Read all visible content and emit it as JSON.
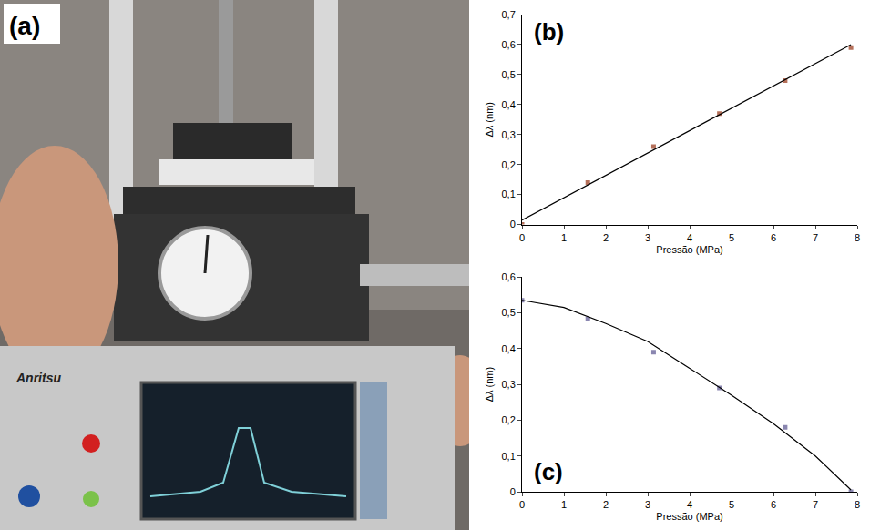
{
  "photo": {
    "label": "(a)",
    "texts": [
      "Anritsu"
    ]
  },
  "chart_data": [
    {
      "type": "scatter",
      "label": "(b)",
      "x_label": "Pressão (MPa)",
      "y_label": "Δλ (nm)",
      "xlim": [
        0,
        8
      ],
      "xticks": [
        0,
        1,
        2,
        3,
        4,
        5,
        6,
        7,
        8
      ],
      "ylim": [
        0,
        0.7
      ],
      "yticks": [
        0,
        {
          "value": 0.1,
          "label": "0,1"
        },
        {
          "value": 0.2,
          "label": "0,2"
        },
        {
          "value": 0.3,
          "label": "0,3"
        },
        {
          "value": 0.4,
          "label": "0,4"
        },
        {
          "value": 0.5,
          "label": "0,5"
        },
        {
          "value": 0.6,
          "label": "0,6"
        },
        {
          "value": 0.7,
          "label": "0,7"
        }
      ],
      "grid": false,
      "series": [
        {
          "type": "scatter",
          "marker": "square",
          "color": "#b5705a",
          "x": [
            0,
            1.57,
            3.14,
            4.71,
            6.28,
            7.85
          ],
          "values": [
            0,
            0.14,
            0.26,
            0.37,
            0.48,
            0.59
          ]
        },
        {
          "type": "line",
          "line_style": "solid",
          "color": "#000000",
          "x": [
            0,
            7.85
          ],
          "values": [
            0.015,
            0.6
          ]
        }
      ]
    },
    {
      "type": "scatter",
      "label": "(c)",
      "x_label": "Pressão (MPa)",
      "y_label": "Δλ (nm)",
      "xlim": [
        0,
        8
      ],
      "xticks": [
        0,
        1,
        2,
        3,
        4,
        5,
        6,
        7,
        8
      ],
      "ylim": [
        0,
        0.6
      ],
      "yticks": [
        0,
        {
          "value": 0.1,
          "label": "0,1"
        },
        {
          "value": 0.2,
          "label": "0,2"
        },
        {
          "value": 0.3,
          "label": "0,3"
        },
        {
          "value": 0.4,
          "label": "0,4"
        },
        {
          "value": 0.5,
          "label": "0,5"
        },
        {
          "value": 0.6,
          "label": "0,6"
        }
      ],
      "grid": false,
      "series": [
        {
          "type": "scatter",
          "marker": "square",
          "color": "#8a86b0",
          "x": [
            0,
            1.57,
            3.14,
            4.71,
            6.28,
            7.85
          ],
          "values": [
            0.535,
            0.483,
            0.39,
            0.29,
            0.18,
            0
          ]
        },
        {
          "type": "line",
          "line_style": "solid",
          "color": "#000000",
          "x": [
            0,
            1,
            2,
            3,
            4,
            5,
            6,
            7,
            7.85
          ],
          "values": [
            0.535,
            0.515,
            0.47,
            0.42,
            0.345,
            0.27,
            0.19,
            0.1,
            0.005
          ]
        }
      ]
    }
  ]
}
